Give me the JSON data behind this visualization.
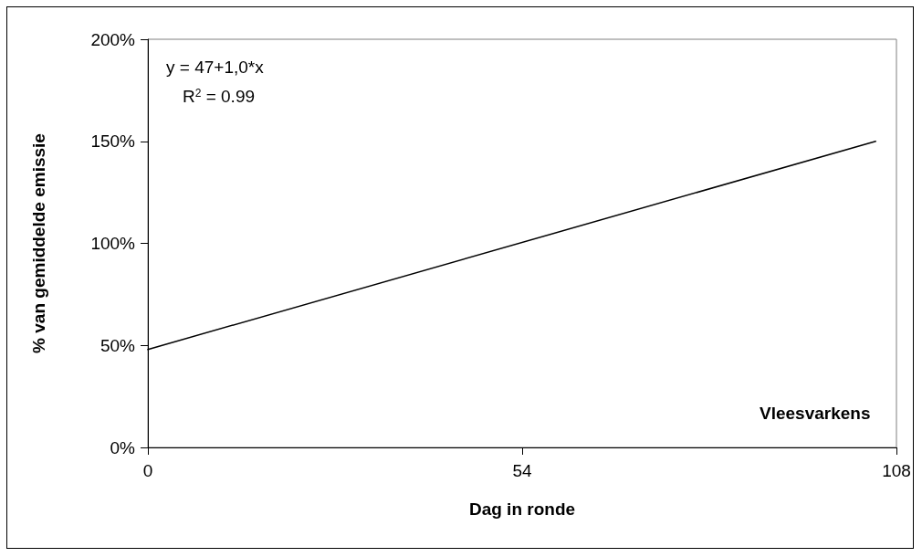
{
  "chart_data": {
    "type": "line",
    "xlabel": "Dag in ronde",
    "ylabel": "% van gemiddelde emissie",
    "x": [
      0,
      105
    ],
    "series": [
      {
        "color": "#000000",
        "values": [
          48,
          150
        ]
      }
    ],
    "xlim": [
      0,
      108
    ],
    "xticks": [
      0,
      54,
      108
    ],
    "ylim": [
      0,
      200
    ],
    "yticks": [
      {
        "value": 0,
        "label": "0%"
      },
      {
        "value": 50,
        "label": "50%"
      },
      {
        "value": 100,
        "label": "100%"
      },
      {
        "value": 150,
        "label": "150%"
      },
      {
        "value": 200,
        "label": "200%"
      }
    ],
    "annotations": [
      "y = 47+1,0*x",
      "R$^{2}$ = 0.99",
      "Vleesvarkens"
    ],
    "grid": false,
    "marker": "none",
    "line_style": "solid"
  }
}
